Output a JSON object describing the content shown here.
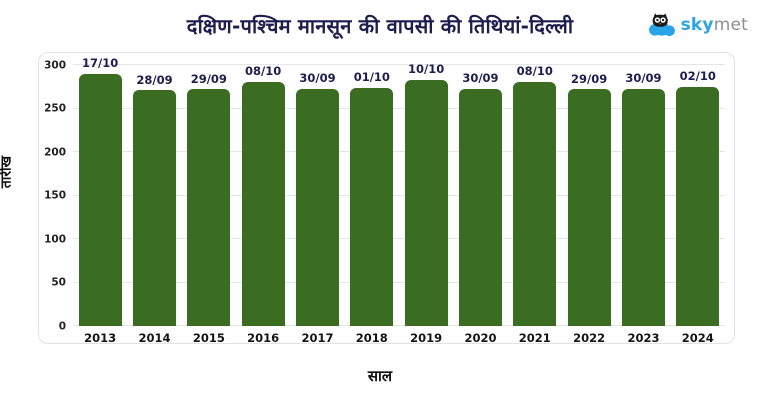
{
  "header": {
    "title": "दक्षिण-पश्चिम मानसून की वापसी की तिथियां-दिल्ली",
    "logo": {
      "sky": "sky",
      "met": "met",
      "icon": "owl-on-cloud-icon",
      "blue": "#29A4E9",
      "gray": "#8E8E8E"
    }
  },
  "chart_data": {
    "type": "bar",
    "title": "दक्षिण-पश्चिम मानसून की वापसी की तिथियां-दिल्ली",
    "categories": [
      "2013",
      "2014",
      "2015",
      "2016",
      "2017",
      "2018",
      "2019",
      "2020",
      "2021",
      "2022",
      "2023",
      "2024"
    ],
    "values": [
      290,
      271,
      272,
      281,
      273,
      274,
      283,
      273,
      281,
      272,
      273,
      275
    ],
    "bar_labels": [
      "17/10",
      "28/09",
      "29/09",
      "08/10",
      "30/09",
      "01/10",
      "10/10",
      "30/09",
      "08/10",
      "29/09",
      "30/09",
      "02/10"
    ],
    "xlabel": "साल",
    "ylabel": "तारीख",
    "ylim": [
      0,
      300
    ],
    "yticks": [
      0,
      50,
      100,
      150,
      200,
      250,
      300
    ],
    "grid": true,
    "legend": "none",
    "bar_color": "#3A6D22",
    "bar_label_color": "#1D1D4E"
  }
}
